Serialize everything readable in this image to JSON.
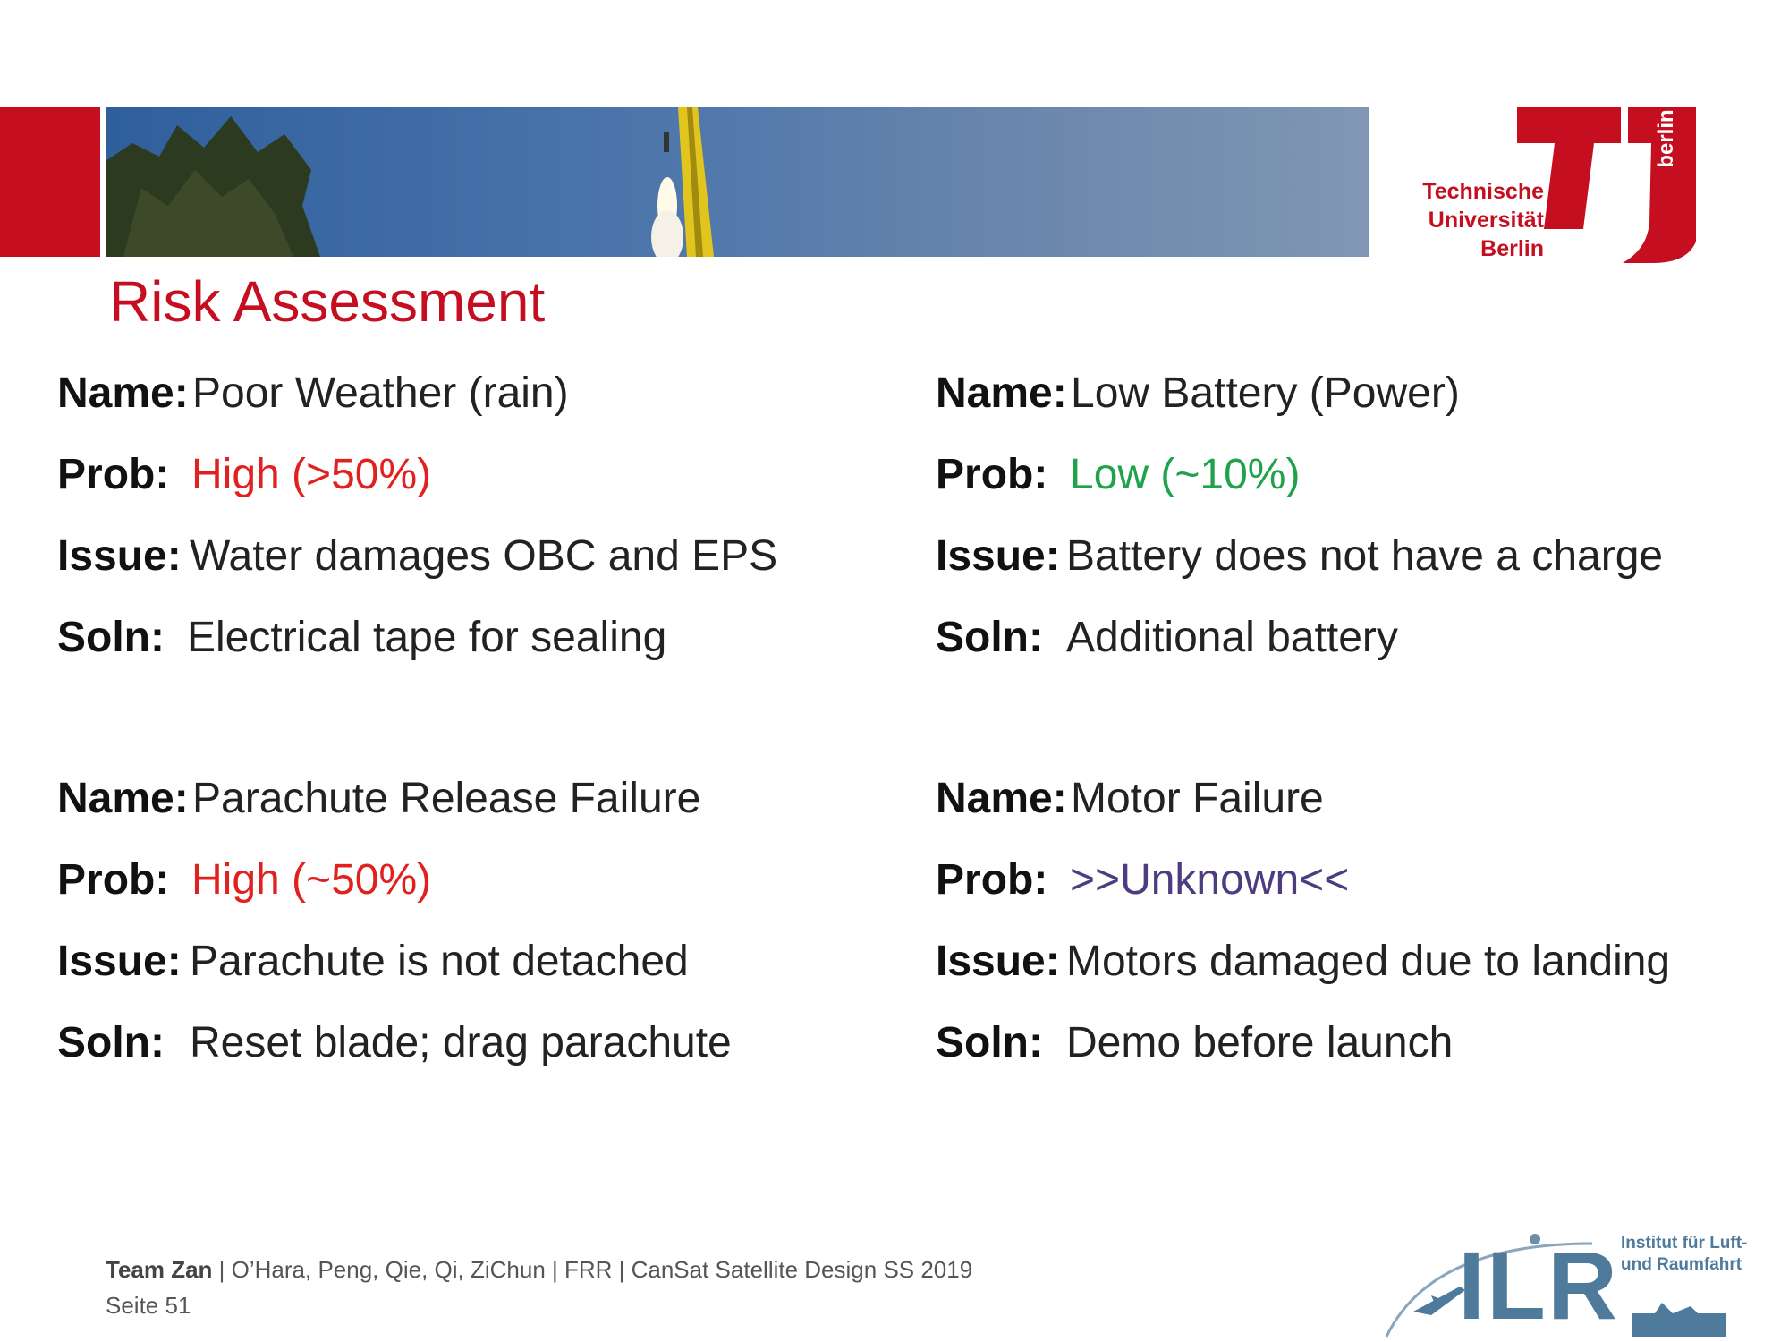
{
  "header": {
    "university": [
      "Technische",
      "Universität",
      "Berlin"
    ],
    "university_short": "berlin",
    "brand_color": "#c50e1f",
    "banner_icon": "rocket-launch-photo"
  },
  "title": "Risk Assessment",
  "labels": {
    "name": "Name:",
    "prob": "Prob:",
    "issue": "Issue:",
    "soln": "Soln:"
  },
  "risks": [
    {
      "name": "Poor Weather (rain)",
      "prob": "High (>50%)",
      "prob_color": "#e0211f",
      "issue": "Water damages OBC and EPS",
      "soln": "Electrical tape for sealing"
    },
    {
      "name": "Low Battery (Power)",
      "prob": "Low (~10%)",
      "prob_color": "#1fa34a",
      "issue": "Battery does not have a charge",
      "soln": "Additional battery"
    },
    {
      "name": "Parachute Release Failure",
      "prob": "High (~50%)",
      "prob_color": "#e0211f",
      "issue": "Parachute is not detached",
      "soln": "Reset blade; drag parachute"
    },
    {
      "name": "Motor Failure",
      "prob": ">>Unknown<<",
      "prob_color": "#4d3d80",
      "issue": "Motors damaged due to landing",
      "soln": "Demo before launch"
    }
  ],
  "footer": {
    "team": "Team Zan",
    "rest": " | O’Hara, Peng, Qie, Qi, ZiChun | FRR | CanSat Satellite Design SS 2019",
    "page": "Seite 51"
  },
  "ilr": {
    "letters": "ILR",
    "institute": [
      "Institut für Luft-",
      "und Raumfahrt"
    ],
    "color": "#4e7a9c",
    "icon": "airplane-icon"
  }
}
